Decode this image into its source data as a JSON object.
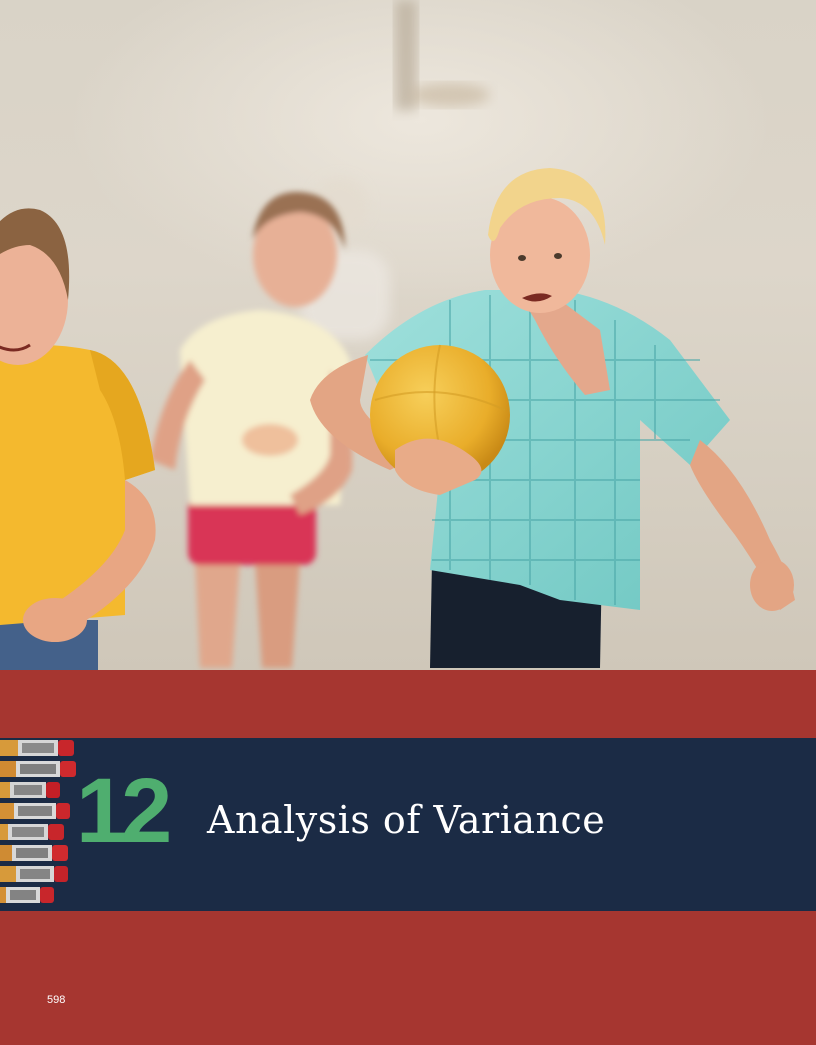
{
  "chapter": {
    "number": "12",
    "title": "Analysis of Variance"
  },
  "page": {
    "number": "598"
  },
  "photo": {
    "icon": "children-running-on-beach-photo"
  },
  "colors": {
    "band_red": "#a63630",
    "title_band_navy": "#1b2b45",
    "chapter_number_green": "#4fae6f",
    "title_white": "#ffffff"
  }
}
